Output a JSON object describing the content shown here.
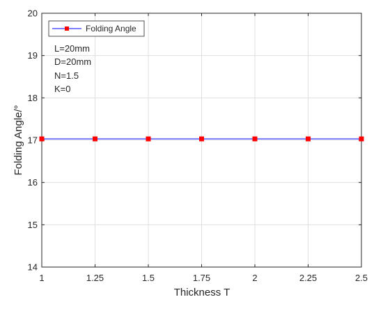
{
  "chart_data": {
    "type": "line",
    "title": "",
    "xlabel": "Thickness T",
    "ylabel": "Folding Angle/°",
    "xlim": [
      1,
      2.5
    ],
    "ylim": [
      14,
      20
    ],
    "x_ticks": [
      1,
      1.25,
      1.5,
      1.75,
      2,
      2.25,
      2.5
    ],
    "x_tick_labels": [
      "1",
      "1.25",
      "1.5",
      "1.75",
      "2",
      "2.25",
      "2.5"
    ],
    "y_ticks": [
      14,
      15,
      16,
      17,
      18,
      19,
      20
    ],
    "y_tick_labels": [
      "14",
      "15",
      "16",
      "17",
      "18",
      "19",
      "20"
    ],
    "grid": true,
    "legend_position": "top-left",
    "series": [
      {
        "name": "Folding Angle",
        "line_color": "#0000ff",
        "marker_color": "#ff0000",
        "marker": "square",
        "x": [
          1,
          1.25,
          1.5,
          1.75,
          2,
          2.25,
          2.5
        ],
        "values": [
          17.03,
          17.03,
          17.03,
          17.03,
          17.03,
          17.03,
          17.03
        ]
      }
    ],
    "annotations": [
      "L=20mm",
      "D=20mm",
      "N=1.5",
      "K=0"
    ]
  }
}
